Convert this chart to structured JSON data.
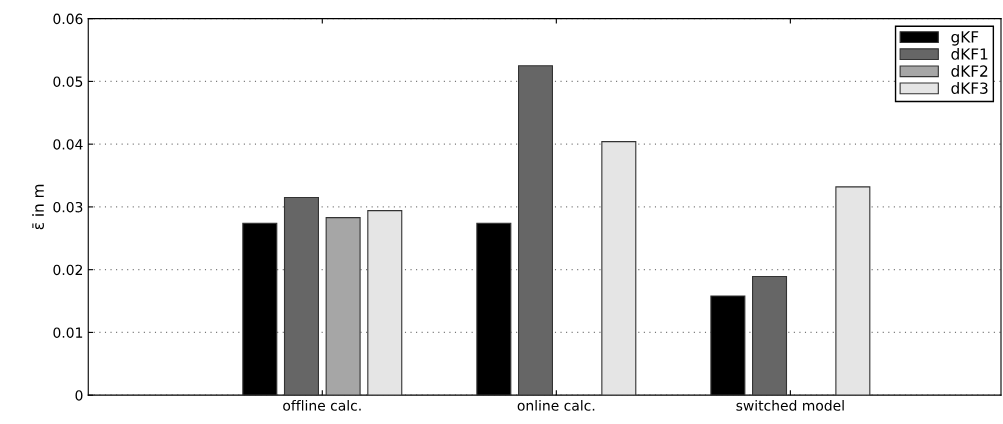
{
  "chart_data": {
    "type": "bar",
    "ylabel": "ε̄ in m",
    "categories": [
      "offline calc.",
      "online calc.",
      "switched model"
    ],
    "series": [
      {
        "name": "gKF",
        "color": "#000000",
        "values": [
          0.0274,
          0.0274,
          0.0158
        ]
      },
      {
        "name": "dKF1",
        "color": "#666666",
        "values": [
          0.0315,
          0.0525,
          0.0189
        ]
      },
      {
        "name": "dKF2",
        "color": "#a6a6a6",
        "values": [
          0.0283,
          null,
          null
        ]
      },
      {
        "name": "dKF3",
        "color": "#e5e5e5",
        "values": [
          0.0294,
          0.0404,
          0.0332
        ]
      }
    ],
    "ylim": [
      0,
      0.06
    ],
    "yticks": [
      0,
      0.01,
      0.02,
      0.03,
      0.04,
      0.05,
      0.06
    ],
    "grid": "y",
    "legend": "top right"
  }
}
